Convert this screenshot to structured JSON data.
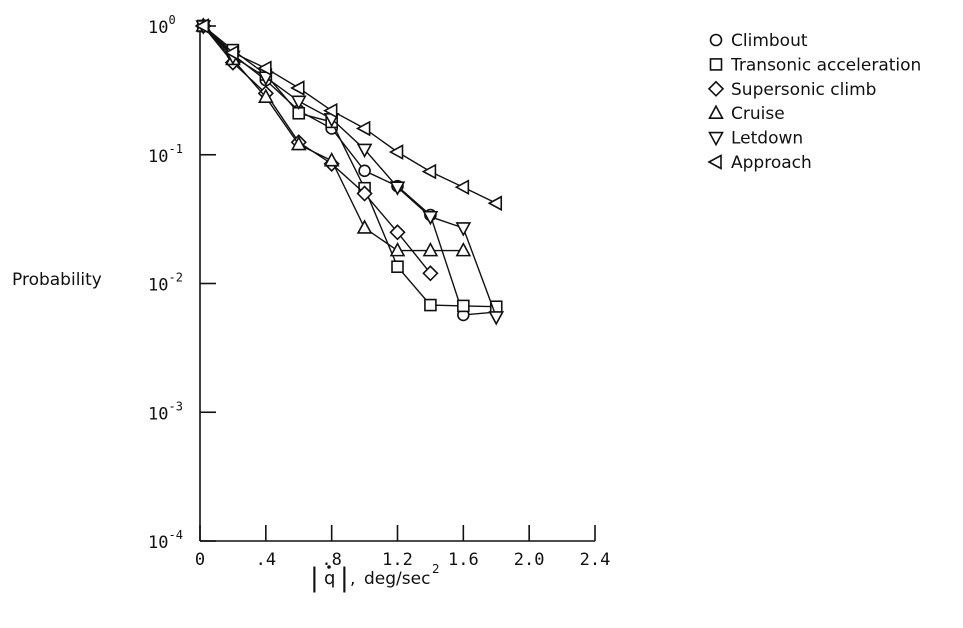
{
  "chart_data": {
    "type": "line",
    "ylabel": "Probability",
    "xlabel": "|q̇|, deg/sec",
    "xlabel_parts": {
      "bar_left": "|",
      "q": "q",
      "bar_right": "|",
      "comma": ",",
      "unit": "deg/sec",
      "unit_exp": "2"
    },
    "x_scale": "linear",
    "y_scale": "log",
    "xlim": [
      0,
      2.4
    ],
    "ylim": [
      0.0001,
      1
    ],
    "x_ticks": [
      {
        "value": 0,
        "label": "0"
      },
      {
        "value": 0.4,
        "label": ".4"
      },
      {
        "value": 0.8,
        "label": ".8"
      },
      {
        "value": 1.2,
        "label": "1.2"
      },
      {
        "value": 1.6,
        "label": "1.6"
      },
      {
        "value": 2.0,
        "label": "2.0"
      },
      {
        "value": 2.4,
        "label": "2.4"
      }
    ],
    "y_ticks": [
      {
        "value": 1,
        "base": "10",
        "exp": "0"
      },
      {
        "value": 0.1,
        "base": "10",
        "exp": "-1"
      },
      {
        "value": 0.01,
        "base": "10",
        "exp": "-2"
      },
      {
        "value": 0.001,
        "base": "10",
        "exp": "-3"
      },
      {
        "value": 0.0001,
        "base": "10",
        "exp": "-4"
      }
    ],
    "grid": false,
    "legend_position": "top-right",
    "series": [
      {
        "name": "Climbout",
        "marker": "circle",
        "x": [
          0.02,
          0.2,
          0.4,
          0.6,
          0.8,
          1.0,
          1.2,
          1.4,
          1.6,
          1.8
        ],
        "y": [
          1.0,
          0.6,
          0.38,
          0.22,
          0.16,
          0.075,
          0.057,
          0.034,
          0.0057,
          0.006
        ]
      },
      {
        "name": "Transonic acceleration",
        "marker": "square",
        "x": [
          0.02,
          0.2,
          0.4,
          0.6,
          0.8,
          1.0,
          1.2,
          1.4,
          1.6,
          1.8
        ],
        "y": [
          1.0,
          0.65,
          0.42,
          0.21,
          0.18,
          0.055,
          0.0135,
          0.0068,
          0.0067,
          0.0066
        ]
      },
      {
        "name": "Supersonic climb",
        "marker": "diamond",
        "x": [
          0.02,
          0.2,
          0.4,
          0.6,
          0.8,
          1.0,
          1.2,
          1.4
        ],
        "y": [
          1.0,
          0.52,
          0.3,
          0.125,
          0.085,
          0.05,
          0.025,
          0.012
        ]
      },
      {
        "name": "Cruise",
        "marker": "triangle-up",
        "x": [
          0.02,
          0.2,
          0.4,
          0.6,
          0.8,
          1.0,
          1.2,
          1.4,
          1.6
        ],
        "y": [
          1.0,
          0.55,
          0.28,
          0.12,
          0.09,
          0.027,
          0.018,
          0.018,
          0.018
        ]
      },
      {
        "name": "Letdown",
        "marker": "triangle-down",
        "x": [
          0.02,
          0.2,
          0.4,
          0.6,
          0.8,
          1.0,
          1.2,
          1.4,
          1.6,
          1.8
        ],
        "y": [
          1.0,
          0.58,
          0.4,
          0.26,
          0.19,
          0.11,
          0.056,
          0.033,
          0.027,
          0.0055
        ]
      },
      {
        "name": "Approach",
        "marker": "triangle-left",
        "x": [
          0.02,
          0.2,
          0.4,
          0.6,
          0.8,
          1.0,
          1.2,
          1.4,
          1.6,
          1.8
        ],
        "y": [
          1.0,
          0.62,
          0.47,
          0.33,
          0.22,
          0.16,
          0.105,
          0.074,
          0.056,
          0.042
        ]
      }
    ]
  }
}
